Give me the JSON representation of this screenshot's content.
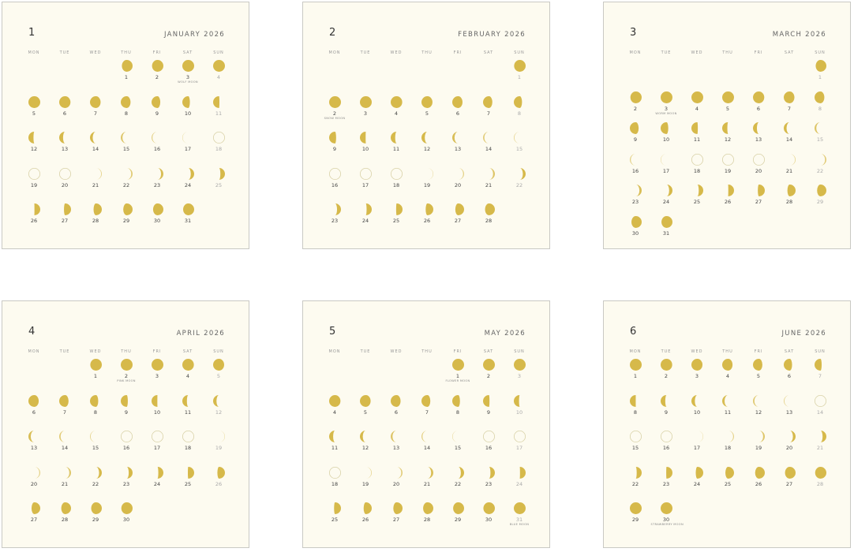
{
  "colors": {
    "moon": "#d6b94a",
    "new_moon_outline": "#d9d2a8",
    "background": "#fdfbf0",
    "border": "#c9c9c4"
  },
  "weekdays": [
    "MON",
    "TUE",
    "WED",
    "THU",
    "FRI",
    "SAT",
    "SUN"
  ],
  "months": [
    {
      "number": "1",
      "title": "JANUARY 2026",
      "year": 2026,
      "month": 1,
      "moon_names": {
        "3": "WOLF MOON"
      }
    },
    {
      "number": "2",
      "title": "FEBRUARY 2026",
      "year": 2026,
      "month": 2,
      "moon_names": {
        "2": "SNOW MOON"
      }
    },
    {
      "number": "3",
      "title": "MARCH 2026",
      "year": 2026,
      "month": 3,
      "moon_names": {
        "3": "WORM MOON"
      }
    },
    {
      "number": "4",
      "title": "APRIL 2026",
      "year": 2026,
      "month": 4,
      "moon_names": {
        "2": "PINK MOON"
      }
    },
    {
      "number": "5",
      "title": "MAY 2026",
      "year": 2026,
      "month": 5,
      "moon_names": {
        "1": "FLOWER MOON",
        "31": "BLUE MOON"
      }
    },
    {
      "number": "6",
      "title": "JUNE 2026",
      "year": 2026,
      "month": 6,
      "moon_names": {
        "30": "STRAWBERRY MOON"
      }
    }
  ]
}
